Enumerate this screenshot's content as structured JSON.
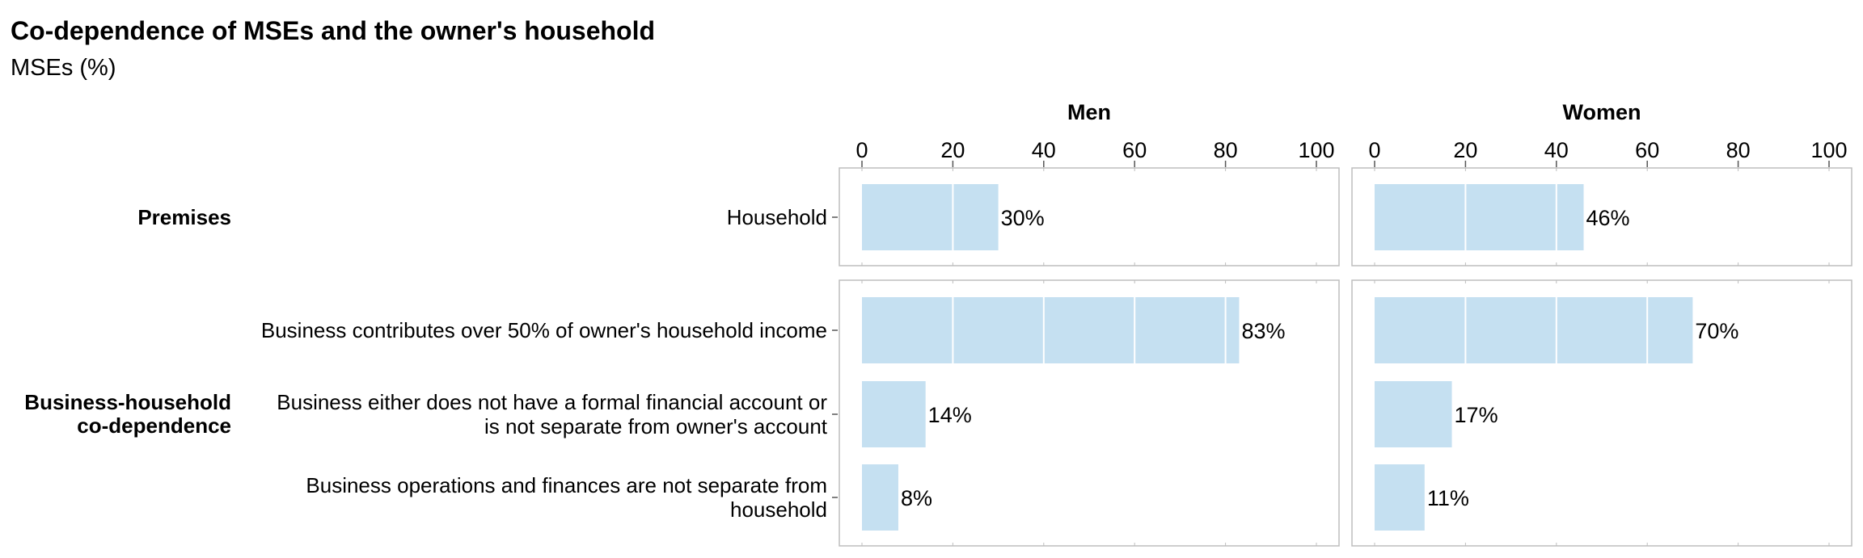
{
  "chart_data": {
    "type": "bar",
    "orientation": "horizontal",
    "title": "Co-dependence of MSEs and the owner's household",
    "subtitle": "MSEs (%)",
    "xlim": [
      0,
      100
    ],
    "x_ticks": [
      0,
      20,
      40,
      60,
      80,
      100
    ],
    "value_suffix": "%",
    "grid": true,
    "facets": [
      "Men",
      "Women"
    ],
    "groups": [
      {
        "name": "Premises",
        "categories": [
          {
            "label": [
              "Household"
            ],
            "values": {
              "Men": 30,
              "Women": 46
            }
          }
        ]
      },
      {
        "name": "Business-household co-dependence",
        "name_lines": [
          "Business-household",
          "co-dependence"
        ],
        "categories": [
          {
            "label": [
              "Business contributes over 50% of owner's household income"
            ],
            "values": {
              "Men": 83,
              "Women": 70
            }
          },
          {
            "label": [
              "Business either does not have a formal financial account or",
              "is not separate from owner's account"
            ],
            "values": {
              "Men": 14,
              "Women": 17
            }
          },
          {
            "label": [
              "Business operations and finances are not separate from",
              "household"
            ],
            "values": {
              "Men": 8,
              "Women": 11
            }
          }
        ]
      }
    ],
    "colors": {
      "bar": "#c5e0f1",
      "panel_border": "#bdbdbd",
      "grid": "#ffffff"
    }
  }
}
